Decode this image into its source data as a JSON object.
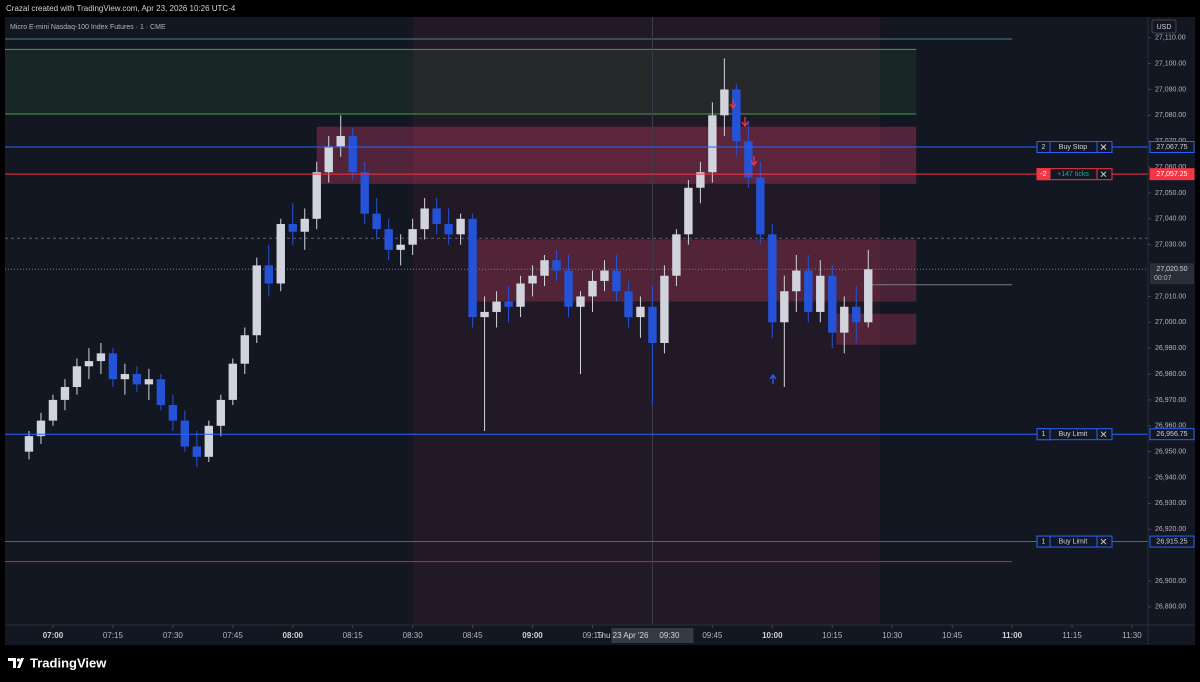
{
  "header": {
    "caption": "Crazal created with TradingView.com, Apr 23, 2026 10:26 UTC-4"
  },
  "footer": {
    "brand": "TradingView"
  },
  "chart_data": {
    "type": "candlestick",
    "symbol": "Micro E-mini Nasdaq-100 Index Futures · 1 · CME",
    "currency": "USD",
    "up_color": "#d1d4dc",
    "down_color": "#2453d8",
    "grid": false,
    "x": [
      "06:54",
      "06:57",
      "07:00",
      "07:03",
      "07:06",
      "07:09",
      "07:12",
      "07:15",
      "07:18",
      "07:21",
      "07:24",
      "07:27",
      "07:30",
      "07:33",
      "07:36",
      "07:39",
      "07:42",
      "07:45",
      "07:48",
      "07:51",
      "07:54",
      "07:57",
      "08:00",
      "08:03",
      "08:06",
      "08:09",
      "08:12",
      "08:15",
      "08:18",
      "08:21",
      "08:24",
      "08:27",
      "08:30",
      "08:33",
      "08:36",
      "08:39",
      "08:42",
      "08:45",
      "08:48",
      "08:51",
      "08:54",
      "08:57",
      "09:00",
      "09:03",
      "09:06",
      "09:09",
      "09:12",
      "09:15",
      "09:18",
      "09:21",
      "09:24",
      "09:27",
      "09:30",
      "09:33",
      "09:36",
      "09:39",
      "09:42",
      "09:45",
      "09:48",
      "09:51",
      "09:54",
      "09:57",
      "10:00",
      "10:03",
      "10:06",
      "10:09",
      "10:12",
      "10:15",
      "10:18",
      "10:21",
      "10:24"
    ],
    "open": [
      26950,
      26956,
      26962,
      26970,
      26975,
      26983,
      26985,
      26988,
      26978,
      26980,
      26976,
      26978,
      26968,
      26962,
      26952,
      26948,
      26960,
      26970,
      26984,
      26995,
      27022,
      27015,
      27038,
      27035,
      27040,
      27058,
      27068,
      27072,
      27058,
      27042,
      27036,
      27028,
      27030,
      27036,
      27044,
      27038,
      27034,
      27040,
      27002,
      27004,
      27008,
      27006,
      27015,
      27018,
      27024,
      27020,
      27006,
      27010,
      27016,
      27020,
      27012,
      27002,
      27006,
      26992,
      27018,
      27034,
      27052,
      27058,
      27080,
      27090,
      27070,
      27056,
      27034,
      27000,
      27012,
      27020,
      27004,
      27018,
      26996,
      27006,
      27000
    ],
    "high": [
      26958,
      26965,
      26972,
      26978,
      26986,
      26990,
      26992,
      26990,
      26984,
      26983,
      26982,
      26980,
      26972,
      26966,
      26958,
      26962,
      26972,
      26986,
      26998,
      27025,
      27030,
      27040,
      27046,
      27044,
      27062,
      27072,
      27080,
      27075,
      27062,
      27048,
      27040,
      27034,
      27040,
      27048,
      27048,
      27044,
      27042,
      27042,
      27010,
      27012,
      27014,
      27018,
      27022,
      27026,
      27028,
      27026,
      27012,
      27020,
      27024,
      27026,
      27016,
      27010,
      27014,
      27022,
      27036,
      27055,
      27062,
      27085,
      27102,
      27092,
      27078,
      27062,
      27038,
      27018,
      27026,
      27026,
      27024,
      27022,
      27010,
      27014,
      27028
    ],
    "low": [
      26947,
      26953,
      26960,
      26966,
      26972,
      26978,
      26980,
      26975,
      26972,
      26973,
      26970,
      26966,
      26958,
      26950,
      26944,
      26946,
      26956,
      26968,
      26980,
      26992,
      27010,
      27012,
      27030,
      27028,
      27036,
      27054,
      27064,
      27055,
      27038,
      27032,
      27024,
      27022,
      27026,
      27032,
      27034,
      27030,
      27030,
      26998,
      26958,
      26998,
      27000,
      27002,
      27010,
      27014,
      27016,
      27002,
      26980,
      27004,
      27012,
      27008,
      26998,
      26994,
      26968,
      26988,
      27014,
      27030,
      27046,
      27054,
      27072,
      27064,
      27052,
      27030,
      26994,
      26975,
      27004,
      27000,
      27000,
      26990,
      26988,
      26992,
      26998
    ],
    "close": [
      26956,
      26962,
      26970,
      26975,
      26983,
      26985,
      26988,
      26978,
      26980,
      26976,
      26978,
      26968,
      26962,
      26952,
      26948,
      26960,
      26970,
      26984,
      26995,
      27022,
      27015,
      27038,
      27035,
      27040,
      27058,
      27068,
      27072,
      27058,
      27042,
      27036,
      27028,
      27030,
      27036,
      27044,
      27038,
      27034,
      27040,
      27002,
      27004,
      27008,
      27006,
      27015,
      27018,
      27024,
      27020,
      27006,
      27010,
      27016,
      27020,
      27012,
      27002,
      27006,
      26992,
      27018,
      27034,
      27052,
      27058,
      27080,
      27090,
      27070,
      27056,
      27034,
      27000,
      27012,
      27020,
      27004,
      27018,
      26996,
      27006,
      27000,
      27020.5
    ],
    "xlim": [
      "06:48",
      "11:34"
    ],
    "xticks": [
      "07:00",
      "07:15",
      "07:30",
      "07:45",
      "08:00",
      "08:15",
      "08:30",
      "08:45",
      "09:00",
      "09:15",
      "09:45",
      "10:00",
      "10:15",
      "10:30",
      "10:45",
      "11:00",
      "11:15",
      "11:30"
    ],
    "ylim": [
      26883,
      27118
    ],
    "yticks": [
      {
        "value": 26890,
        "label": "26,890.00"
      },
      {
        "value": 26900,
        "label": "26,900.00"
      },
      {
        "value": 26920,
        "label": "26,920.00"
      },
      {
        "value": 26930,
        "label": "26,930.00"
      },
      {
        "value": 26940,
        "label": "26,940.00"
      },
      {
        "value": 26950,
        "label": "26,950.00"
      },
      {
        "value": 26960,
        "label": "26,960.00"
      },
      {
        "value": 26970,
        "label": "26,970.00"
      },
      {
        "value": 26980,
        "label": "26,980.00"
      },
      {
        "value": 26990,
        "label": "26,990.00"
      },
      {
        "value": 27000,
        "label": "27,000.00"
      },
      {
        "value": 27010,
        "label": "27,010.00"
      },
      {
        "value": 27030,
        "label": "27,030.00"
      },
      {
        "value": 27040,
        "label": "27,040.00"
      },
      {
        "value": 27050,
        "label": "27,050.00"
      },
      {
        "value": 27060,
        "label": "27,060.00"
      },
      {
        "value": 27070,
        "label": "27,070.00"
      },
      {
        "value": 27080,
        "label": "27,080.00"
      },
      {
        "value": 27090,
        "label": "27,090.00"
      },
      {
        "value": 27100,
        "label": "27,100.00"
      },
      {
        "value": 27110,
        "label": "27,110.00"
      }
    ],
    "session": {
      "x": [
        "08:30",
        "10:27"
      ],
      "color": "rgba(140,40,70,0.13)"
    },
    "zones": [
      {
        "x": [
          "06:48",
          "10:36"
        ],
        "y": [
          27080.5,
          27105.5
        ],
        "color": "rgba(76,175,80,0.10)"
      },
      {
        "x": [
          "08:06",
          "10:36"
        ],
        "y": [
          27053.5,
          27075.6
        ],
        "color": "rgba(200,60,100,0.35)"
      },
      {
        "x": [
          "08:45",
          "10:36"
        ],
        "y": [
          27008,
          27032
        ],
        "color": "rgba(200,60,100,0.30)"
      },
      {
        "x": [
          "10:16",
          "10:36"
        ],
        "y": [
          26991.3,
          27003.3
        ],
        "color": "rgba(200,60,100,0.30)"
      }
    ],
    "levels": [
      {
        "value": 27109.5,
        "x": [
          "06:48",
          "11:00"
        ],
        "color": "#4f7d8c"
      },
      {
        "value": 27105.5,
        "x": [
          "06:48",
          "10:36"
        ],
        "color": "#3f9f4f"
      },
      {
        "value": 27080.5,
        "x": [
          "06:48",
          "10:36"
        ],
        "color": "#3f9f4f"
      },
      {
        "value": 26907.5,
        "x": [
          "06:48",
          "11:00"
        ],
        "color": "#c8283c"
      },
      {
        "value": 27032.5,
        "x": [
          "06:48",
          "11:34"
        ],
        "color": "#5d606b",
        "dash": true
      },
      {
        "value": 27014.5,
        "x": [
          "10:25",
          "11:00"
        ],
        "color": "#787b86"
      }
    ],
    "orders": [
      {
        "qty": 2,
        "label": "Buy Stop",
        "price": {
          "value": 27067.75,
          "label": "27,067.75"
        },
        "color": "#2962ff"
      },
      {
        "qty": -2,
        "label": "+147 ticks",
        "price": {
          "value": 27057.25,
          "label": "27,057.25"
        },
        "color": "#f23645",
        "position": true
      },
      {
        "qty": 1,
        "label": "Buy Limit",
        "price": {
          "value": 26956.75,
          "label": "26,956.75"
        },
        "color": "#2962ff"
      },
      {
        "qty": 1,
        "label": "Buy Limit",
        "price": {
          "value": 26915.25,
          "label": "26,915.25"
        },
        "color": "#2962ff"
      }
    ],
    "last_price": {
      "value": 27020.5,
      "label": "27,020.50",
      "countdown": "00:07"
    },
    "crosshair": {
      "x": "09:30",
      "label": "Thu 23 Apr '26"
    }
  }
}
